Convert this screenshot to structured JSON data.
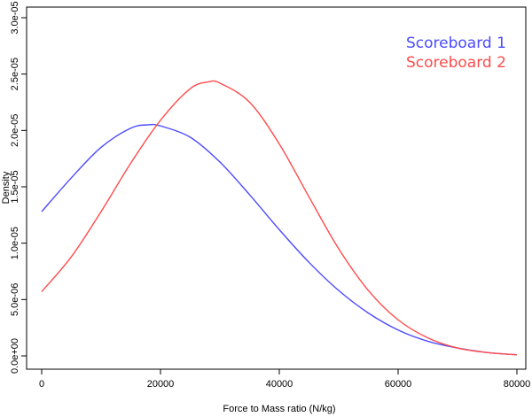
{
  "chart_data": {
    "type": "line",
    "title": "",
    "xlabel": "Force to Mass ratio (N/kg)",
    "ylabel": "Density",
    "xlim": [
      0,
      80000
    ],
    "ylim": [
      0,
      3e-05
    ],
    "x_ticks": [
      0,
      20000,
      40000,
      60000,
      80000
    ],
    "x_tick_labels": [
      "0",
      "20000",
      "40000",
      "60000",
      "80000"
    ],
    "y_ticks": [
      0,
      5e-06,
      1e-05,
      1.5e-05,
      2e-05,
      2.5e-05,
      3e-05
    ],
    "y_tick_labels": [
      "0.0e+00",
      "5.0e-06",
      "1.0e-05",
      "1.5e-05",
      "2.0e-05",
      "2.5e-05",
      "3.0e-05"
    ],
    "grid": false,
    "legend_position": "top-right",
    "series": [
      {
        "name": "Scoreboard 1",
        "color": "#4b4bff",
        "x": [
          0,
          5000,
          10000,
          15000,
          18000,
          20000,
          25000,
          30000,
          35000,
          40000,
          45000,
          50000,
          55000,
          60000,
          65000,
          70000,
          75000,
          80000
        ],
        "y": [
          1.28e-05,
          1.58e-05,
          1.85e-05,
          2.02e-05,
          2.05e-05,
          2.04e-05,
          1.94e-05,
          1.72e-05,
          1.43e-05,
          1.12e-05,
          8.3e-06,
          5.8e-06,
          3.8e-06,
          2.3e-06,
          1.3e-06,
          7e-07,
          3e-07,
          1e-07
        ]
      },
      {
        "name": "Scoreboard 2",
        "color": "#ff4b4b",
        "x": [
          0,
          5000,
          10000,
          15000,
          20000,
          25000,
          28000,
          30000,
          35000,
          40000,
          45000,
          50000,
          55000,
          60000,
          65000,
          70000,
          75000,
          80000
        ],
        "y": [
          5.7e-06,
          8.8e-06,
          1.28e-05,
          1.71e-05,
          2.09e-05,
          2.37e-05,
          2.43e-05,
          2.42e-05,
          2.25e-05,
          1.88e-05,
          1.41e-05,
          9.5e-06,
          5.8e-06,
          3.2e-06,
          1.6e-06,
          7e-07,
          3e-07,
          1e-07
        ]
      }
    ]
  }
}
